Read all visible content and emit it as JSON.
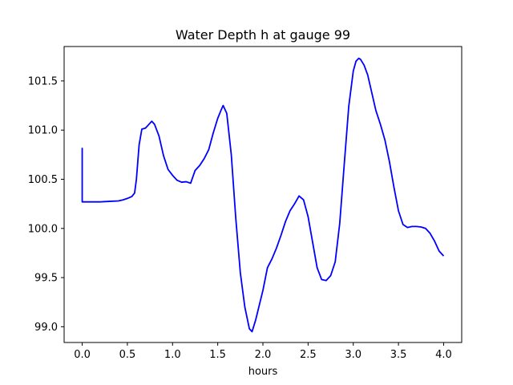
{
  "chart_data": {
    "type": "line",
    "title": "Water Depth h at gauge 99",
    "xlabel": "hours",
    "ylabel": "",
    "xlim": [
      -0.2,
      4.2
    ],
    "ylim": [
      98.84,
      101.85
    ],
    "grid": false,
    "x_ticks": [
      0.0,
      0.5,
      1.0,
      1.5,
      2.0,
      2.5,
      3.0,
      3.5,
      4.0
    ],
    "x_tick_labels": [
      "0.0",
      "0.5",
      "1.0",
      "1.5",
      "2.0",
      "2.5",
      "3.0",
      "3.5",
      "4.0"
    ],
    "y_ticks": [
      99.0,
      99.5,
      100.0,
      100.5,
      101.0,
      101.5
    ],
    "y_tick_labels": [
      "99.0",
      "99.5",
      "100.0",
      "100.5",
      "101.0",
      "101.5"
    ],
    "series": [
      {
        "color": "#0000ff",
        "x": [
          0.0,
          0.0,
          0.1,
          0.2,
          0.3,
          0.4,
          0.45,
          0.5,
          0.55,
          0.58,
          0.6,
          0.63,
          0.66,
          0.7,
          0.73,
          0.77,
          0.8,
          0.85,
          0.9,
          0.95,
          1.0,
          1.05,
          1.1,
          1.15,
          1.2,
          1.25,
          1.3,
          1.35,
          1.4,
          1.45,
          1.5,
          1.54,
          1.56,
          1.6,
          1.65,
          1.7,
          1.75,
          1.8,
          1.85,
          1.88,
          1.92,
          1.96,
          2.0,
          2.05,
          2.1,
          2.15,
          2.2,
          2.25,
          2.3,
          2.35,
          2.4,
          2.45,
          2.5,
          2.55,
          2.6,
          2.65,
          2.7,
          2.75,
          2.8,
          2.85,
          2.9,
          2.95,
          3.0,
          3.03,
          3.06,
          3.08,
          3.12,
          3.16,
          3.2,
          3.25,
          3.3,
          3.35,
          3.4,
          3.45,
          3.5,
          3.55,
          3.6,
          3.65,
          3.7,
          3.75,
          3.8,
          3.85,
          3.9,
          3.95,
          4.0
        ],
        "y": [
          100.82,
          100.27,
          100.27,
          100.27,
          100.275,
          100.28,
          100.29,
          100.305,
          100.325,
          100.36,
          100.5,
          100.85,
          101.01,
          101.02,
          101.05,
          101.09,
          101.06,
          100.94,
          100.74,
          100.6,
          100.54,
          100.49,
          100.47,
          100.475,
          100.46,
          100.59,
          100.64,
          100.71,
          100.8,
          100.97,
          101.12,
          101.21,
          101.25,
          101.17,
          100.75,
          100.1,
          99.55,
          99.2,
          98.98,
          98.95,
          99.07,
          99.22,
          99.37,
          99.6,
          99.69,
          99.8,
          99.93,
          100.07,
          100.18,
          100.25,
          100.33,
          100.29,
          100.12,
          99.86,
          99.6,
          99.48,
          99.47,
          99.52,
          99.66,
          100.05,
          100.65,
          101.24,
          101.6,
          101.7,
          101.73,
          101.72,
          101.66,
          101.56,
          101.4,
          101.2,
          101.06,
          100.9,
          100.68,
          100.42,
          100.18,
          100.04,
          100.01,
          100.02,
          100.02,
          100.015,
          100.0,
          99.95,
          99.87,
          99.77,
          99.72
        ]
      }
    ]
  }
}
